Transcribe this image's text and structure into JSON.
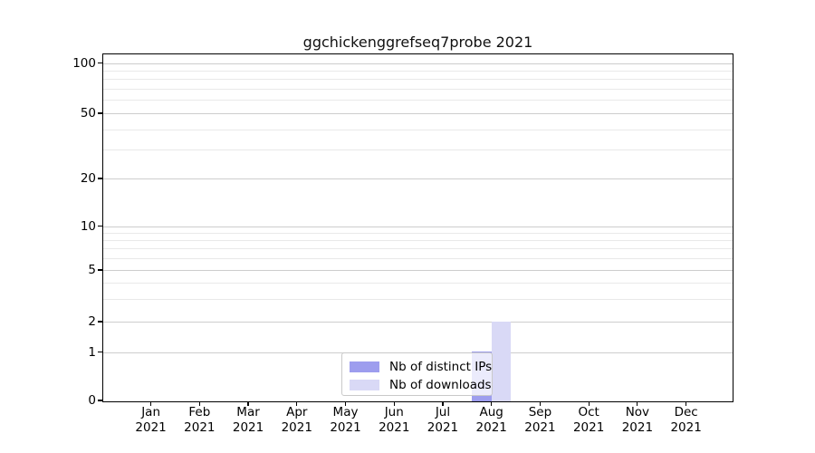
{
  "title": "ggchickenggrefseq7probe 2021",
  "colors": {
    "background": "#ffffff",
    "spine": "#000000",
    "grid_major": "#cdcdcd",
    "grid_minor": "#e9e9e9",
    "distinct_ips_bar": "#9d9dee",
    "downloads_bar": "#d9d9f6",
    "text": "#000000"
  },
  "chart_data": {
    "type": "bar",
    "title": "ggchickenggrefseq7probe 2021",
    "x_axis": {
      "months": [
        "Jan",
        "Feb",
        "Mar",
        "Apr",
        "May",
        "Jun",
        "Jul",
        "Aug",
        "Sep",
        "Oct",
        "Nov",
        "Dec"
      ],
      "year": "2021"
    },
    "y_axis": {
      "scale": "symlog",
      "major_tick_values": [
        0,
        1,
        2,
        5,
        10,
        20,
        50,
        100
      ],
      "major_tick_labels": [
        "0",
        "1",
        "2",
        "5",
        "10",
        "20",
        "50",
        "100"
      ],
      "minor_gridline_values": [
        3,
        4,
        6,
        7,
        8,
        9,
        30,
        40,
        60,
        70,
        80,
        90
      ],
      "ylim": [
        0,
        115
      ],
      "grid": true
    },
    "series": [
      {
        "name": "Nb of distinct IPs",
        "color": "#9d9dee",
        "values": [
          0,
          0,
          0,
          0,
          0,
          0,
          0,
          1,
          0,
          0,
          0,
          0
        ]
      },
      {
        "name": "Nb of downloads",
        "color": "#d9d9f6",
        "values": [
          0,
          0,
          0,
          0,
          0,
          0,
          0,
          2,
          0,
          0,
          0,
          0
        ]
      }
    ],
    "legend": {
      "position": "lower-center",
      "entries": [
        "Nb of distinct IPs",
        "Nb of downloads"
      ]
    }
  }
}
